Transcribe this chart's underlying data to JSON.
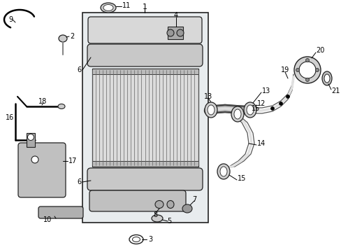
{
  "bg_color": "#ffffff",
  "figsize": [
    4.89,
    3.6
  ],
  "dpi": 100,
  "gray_fill": "#d8d8d8",
  "light_fill": "#efefef",
  "rad_bg": "#e8ecee",
  "box_ec": "#222222",
  "lw": 0.8
}
